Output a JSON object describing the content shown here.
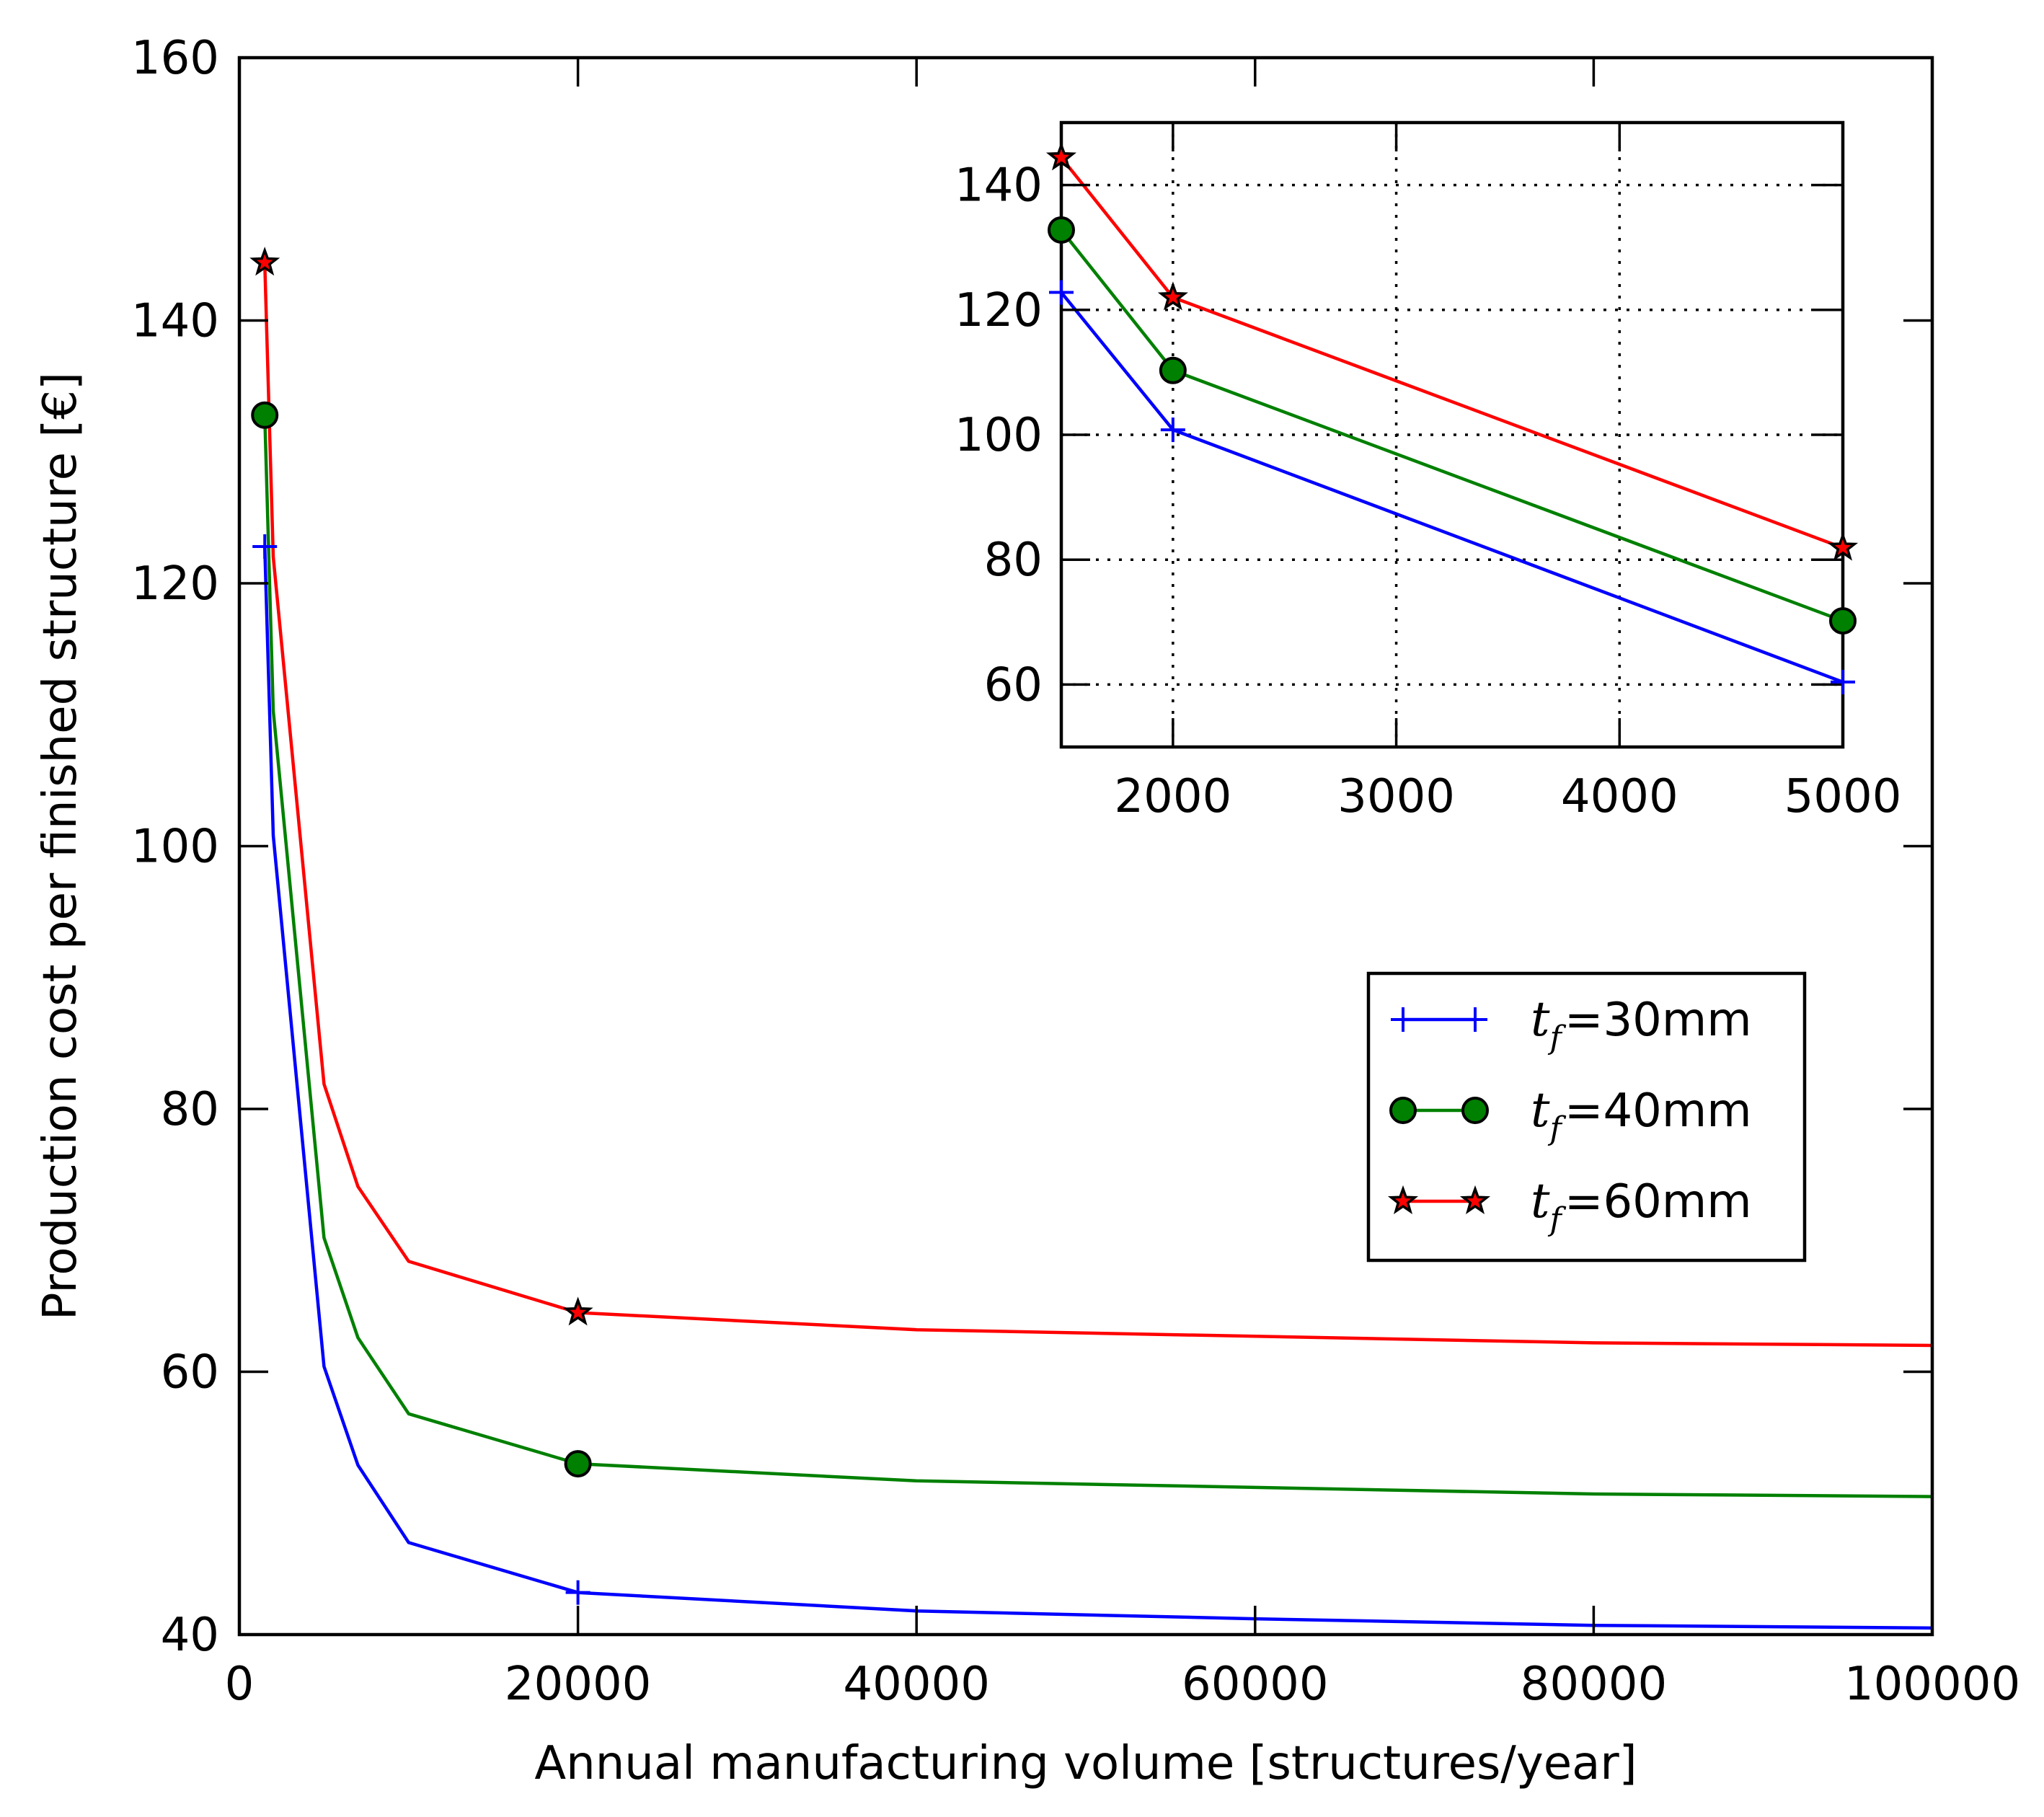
{
  "chart_data": [
    {
      "id": "main",
      "type": "line",
      "title": "",
      "xlabel": "Annual manufacturing volume [structures/year]",
      "ylabel": "Production cost per finished structure [€]",
      "xlim": [
        0,
        100000
      ],
      "ylim": [
        40,
        160
      ],
      "xticks": [
        0,
        20000,
        40000,
        60000,
        80000,
        100000
      ],
      "xtick_labels": [
        "0",
        "20000",
        "40000",
        "60000",
        "80000",
        "100000"
      ],
      "yticks": [
        40,
        60,
        80,
        100,
        120,
        140,
        160
      ],
      "ytick_labels": [
        "40",
        "60",
        "80",
        "100",
        "120",
        "140",
        "160"
      ],
      "grid": false,
      "x": [
        1500,
        2000,
        5000,
        7000,
        10000,
        20000,
        40000,
        60000,
        80000,
        100000
      ],
      "series": [
        {
          "name": "t_f=30mm",
          "color": "#0000ff",
          "marker": "plus",
          "values": [
            122.8,
            100.8,
            60.4,
            52.9,
            47.0,
            43.2,
            41.8,
            41.2,
            40.7,
            40.5
          ],
          "marker_x": [
            1500,
            20000
          ]
        },
        {
          "name": "t_f=40mm",
          "color": "#008000",
          "marker": "circle",
          "values": [
            132.8,
            110.3,
            70.2,
            62.6,
            56.8,
            53.0,
            51.7,
            51.2,
            50.7,
            50.5
          ],
          "marker_x": [
            1500,
            20000
          ]
        },
        {
          "name": "t_f=60mm",
          "color": "#ff0000",
          "marker": "star",
          "values": [
            144.4,
            122.0,
            81.9,
            74.1,
            68.4,
            64.5,
            63.2,
            62.7,
            62.2,
            62.0
          ],
          "marker_x": [
            1500,
            20000
          ]
        }
      ]
    },
    {
      "id": "inset",
      "type": "line",
      "title": "",
      "xlabel": "",
      "ylabel": "",
      "xlim": [
        1500,
        5000
      ],
      "ylim": [
        50,
        150
      ],
      "xticks": [
        2000,
        3000,
        4000,
        5000
      ],
      "xtick_labels": [
        "2000",
        "3000",
        "4000",
        "5000"
      ],
      "yticks": [
        60,
        80,
        100,
        120,
        140
      ],
      "ytick_labels": [
        "60",
        "80",
        "100",
        "120",
        "140"
      ],
      "grid": true,
      "x": [
        1500,
        2000,
        5000
      ],
      "series": [
        {
          "name": "t_f=30mm",
          "color": "#0000ff",
          "marker": "plus",
          "values": [
            122.8,
            100.8,
            60.4
          ],
          "marker_x": [
            1500,
            2000,
            5000
          ]
        },
        {
          "name": "t_f=40mm",
          "color": "#008000",
          "marker": "circle",
          "values": [
            132.8,
            110.3,
            70.2
          ],
          "marker_x": [
            1500,
            2000,
            5000
          ]
        },
        {
          "name": "t_f=60mm",
          "color": "#ff0000",
          "marker": "star",
          "values": [
            144.4,
            122.0,
            81.9
          ],
          "marker_x": [
            1500,
            2000,
            5000
          ]
        }
      ]
    }
  ],
  "legend": {
    "placement": "center-right",
    "entries": [
      {
        "var": "t",
        "sub": "f",
        "text": "=30mm",
        "color": "#0000ff",
        "marker": "plus"
      },
      {
        "var": "t",
        "sub": "f",
        "text": "=40mm",
        "color": "#008000",
        "marker": "circle"
      },
      {
        "var": "t",
        "sub": "f",
        "text": "=60mm",
        "color": "#ff0000",
        "marker": "star"
      }
    ]
  }
}
